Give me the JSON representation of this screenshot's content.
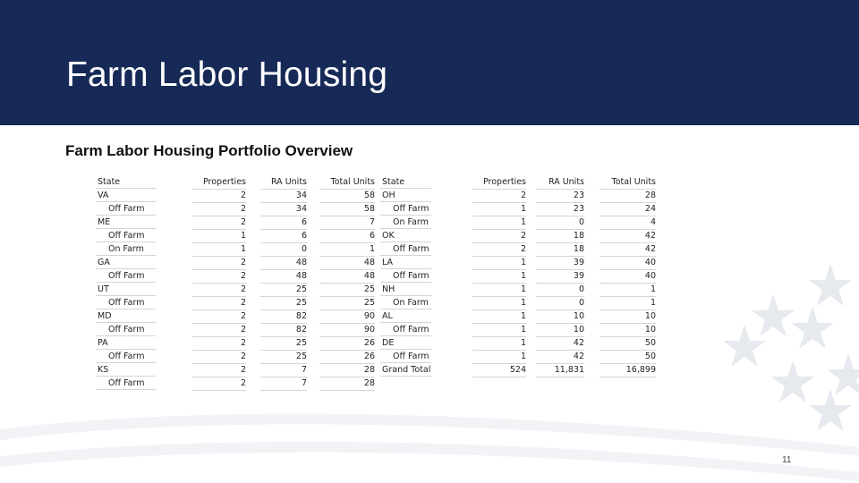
{
  "header": {
    "title": "Farm Labor Housing",
    "bg_color": "#172a57"
  },
  "subtitle": "Farm Labor Housing Portfolio Overview",
  "left_table": {
    "columns": [
      "State",
      "Properties",
      "RA Units",
      "Total Units"
    ],
    "rows": [
      {
        "label": "VA",
        "indent": false,
        "properties": "2",
        "ra_units": "34",
        "total_units": "58"
      },
      {
        "label": "Off Farm",
        "indent": true,
        "properties": "2",
        "ra_units": "34",
        "total_units": "58"
      },
      {
        "label": "ME",
        "indent": false,
        "properties": "2",
        "ra_units": "6",
        "total_units": "7"
      },
      {
        "label": "Off Farm",
        "indent": true,
        "properties": "1",
        "ra_units": "6",
        "total_units": "6"
      },
      {
        "label": "On Farm",
        "indent": true,
        "properties": "1",
        "ra_units": "0",
        "total_units": "1"
      },
      {
        "label": "GA",
        "indent": false,
        "properties": "2",
        "ra_units": "48",
        "total_units": "48"
      },
      {
        "label": "Off Farm",
        "indent": true,
        "properties": "2",
        "ra_units": "48",
        "total_units": "48"
      },
      {
        "label": "UT",
        "indent": false,
        "properties": "2",
        "ra_units": "25",
        "total_units": "25"
      },
      {
        "label": "Off Farm",
        "indent": true,
        "properties": "2",
        "ra_units": "25",
        "total_units": "25"
      },
      {
        "label": "MD",
        "indent": false,
        "properties": "2",
        "ra_units": "82",
        "total_units": "90"
      },
      {
        "label": "Off Farm",
        "indent": true,
        "properties": "2",
        "ra_units": "82",
        "total_units": "90"
      },
      {
        "label": "PA",
        "indent": false,
        "properties": "2",
        "ra_units": "25",
        "total_units": "26"
      },
      {
        "label": "Off Farm",
        "indent": true,
        "properties": "2",
        "ra_units": "25",
        "total_units": "26"
      },
      {
        "label": "KS",
        "indent": false,
        "properties": "2",
        "ra_units": "7",
        "total_units": "28"
      },
      {
        "label": "Off Farm",
        "indent": true,
        "properties": "2",
        "ra_units": "7",
        "total_units": "28"
      }
    ]
  },
  "right_table": {
    "columns": [
      "State",
      "Properties",
      "RA Units",
      "Total Units"
    ],
    "rows": [
      {
        "label": "OH",
        "indent": false,
        "properties": "2",
        "ra_units": "23",
        "total_units": "28"
      },
      {
        "label": "Off Farm",
        "indent": true,
        "properties": "1",
        "ra_units": "23",
        "total_units": "24"
      },
      {
        "label": "On Farm",
        "indent": true,
        "properties": "1",
        "ra_units": "0",
        "total_units": "4"
      },
      {
        "label": "OK",
        "indent": false,
        "properties": "2",
        "ra_units": "18",
        "total_units": "42"
      },
      {
        "label": "Off Farm",
        "indent": true,
        "properties": "2",
        "ra_units": "18",
        "total_units": "42"
      },
      {
        "label": "LA",
        "indent": false,
        "properties": "1",
        "ra_units": "39",
        "total_units": "40"
      },
      {
        "label": "Off Farm",
        "indent": true,
        "properties": "1",
        "ra_units": "39",
        "total_units": "40"
      },
      {
        "label": "NH",
        "indent": false,
        "properties": "1",
        "ra_units": "0",
        "total_units": "1"
      },
      {
        "label": "On Farm",
        "indent": true,
        "properties": "1",
        "ra_units": "0",
        "total_units": "1"
      },
      {
        "label": "AL",
        "indent": false,
        "properties": "1",
        "ra_units": "10",
        "total_units": "10"
      },
      {
        "label": "Off Farm",
        "indent": true,
        "properties": "1",
        "ra_units": "10",
        "total_units": "10"
      },
      {
        "label": "DE",
        "indent": false,
        "properties": "1",
        "ra_units": "42",
        "total_units": "50"
      },
      {
        "label": "Off Farm",
        "indent": true,
        "properties": "1",
        "ra_units": "42",
        "total_units": "50"
      },
      {
        "label": "Grand Total",
        "indent": false,
        "properties": "524",
        "ra_units": "11,831",
        "total_units": "16,899"
      }
    ]
  },
  "page_number": "11",
  "decor": {
    "star_color": "#e6e9ee",
    "stripe_color": "#f1f3f6"
  }
}
